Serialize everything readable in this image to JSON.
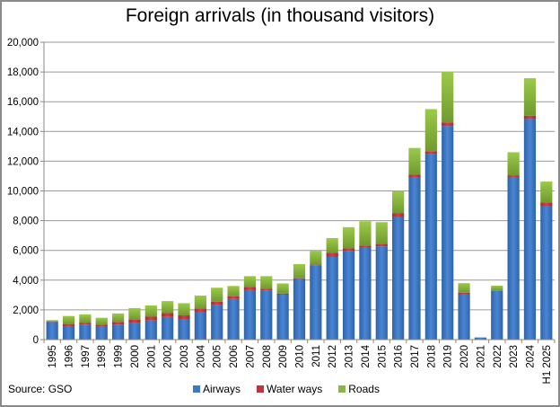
{
  "chart_data": {
    "type": "bar",
    "stacked": true,
    "title": "Foreign arrivals (in thousand visitors)",
    "xlabel": "",
    "ylabel": "",
    "ylim": [
      0,
      20000
    ],
    "yticks": [
      0,
      2000,
      4000,
      6000,
      8000,
      10000,
      12000,
      14000,
      16000,
      18000,
      20000
    ],
    "ytick_labels": [
      "0",
      "2,000",
      "4,000",
      "6,000",
      "8,000",
      "10,000",
      "12,000",
      "14,000",
      "16,000",
      "18,000",
      "20,000"
    ],
    "grid": true,
    "legend_position": "bottom",
    "categories": [
      "1995",
      "1996",
      "1997",
      "1998",
      "1999",
      "2000",
      "2001",
      "2002",
      "2003",
      "2004",
      "2005",
      "2006",
      "2007",
      "2008",
      "2009",
      "2010",
      "2011",
      "2012",
      "2013",
      "2014",
      "2015",
      "2016",
      "2017",
      "2018",
      "2019",
      "2020",
      "2021",
      "2022",
      "2023",
      "2024",
      "H1 2025"
    ],
    "series": [
      {
        "name": "Airways",
        "color": "#3a78c8",
        "values": [
          1190,
          910,
          1010,
          870,
          1010,
          1110,
          1290,
          1520,
          1390,
          1820,
          2350,
          2730,
          3330,
          3310,
          3020,
          4080,
          5000,
          5560,
          5970,
          6190,
          6270,
          8250,
          10910,
          12460,
          14360,
          3050,
          130,
          3270,
          10910,
          14840,
          8970
        ]
      },
      {
        "name": "Water ways",
        "color": "#c0353a",
        "values": [
          30,
          140,
          130,
          140,
          180,
          220,
          250,
          260,
          240,
          260,
          200,
          190,
          200,
          120,
          80,
          40,
          40,
          290,
          160,
          140,
          160,
          240,
          180,
          210,
          250,
          100,
          5,
          30,
          140,
          220,
          260
        ]
      },
      {
        "name": "Roads",
        "color": "#8db63e",
        "values": [
          90,
          540,
          560,
          460,
          570,
          790,
          760,
          810,
          820,
          880,
          940,
          690,
          740,
          840,
          680,
          960,
          930,
          980,
          1430,
          1630,
          1470,
          1490,
          1800,
          2830,
          3390,
          650,
          22,
          330,
          1550,
          2520,
          1400
        ]
      }
    ],
    "annotations": [
      "Source: GSO"
    ]
  },
  "labels": {
    "title": "Foreign arrivals (in thousand visitors)",
    "source": "Source: GSO",
    "legend": [
      "Airways",
      "Water ways",
      "Roads"
    ]
  }
}
